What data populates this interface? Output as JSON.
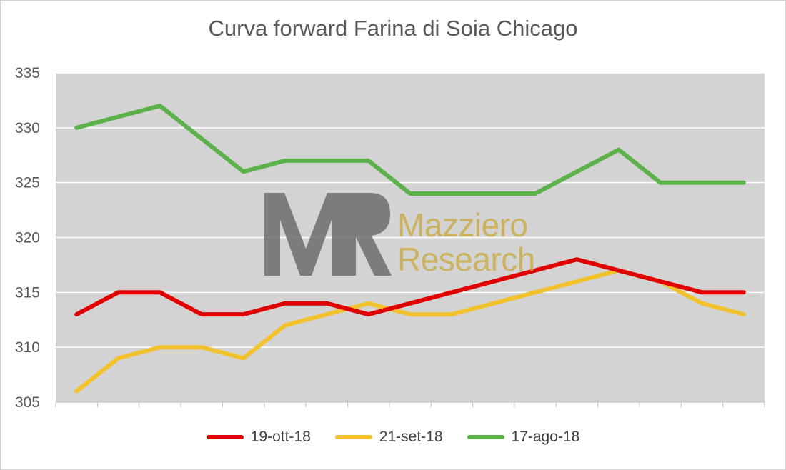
{
  "chart_data": {
    "type": "line",
    "title": "Curva forward Farina di Soia Chicago",
    "xlabel": "",
    "ylabel": "",
    "ylim": [
      305,
      335
    ],
    "yticks": [
      "305",
      "310",
      "315",
      "320",
      "325",
      "330",
      "335"
    ],
    "grid": true,
    "legend_position": "bottom",
    "x_count": 17,
    "series": [
      {
        "name": "19-ott-18",
        "color": "#e00000",
        "values": [
          313,
          315,
          315,
          313,
          313,
          314,
          314,
          313,
          314,
          315,
          316,
          317,
          318,
          317,
          316,
          315,
          315
        ]
      },
      {
        "name": "21-set-18",
        "color": "#f2c12e",
        "values": [
          306,
          309,
          310,
          310,
          309,
          312,
          313,
          314,
          313,
          313,
          314,
          315,
          316,
          317,
          316,
          314,
          313
        ]
      },
      {
        "name": "17-ago-18",
        "color": "#5cb14a",
        "values": [
          330,
          331,
          332,
          329,
          326,
          327,
          327,
          327,
          324,
          324,
          324,
          324,
          326,
          328,
          325,
          325,
          325
        ]
      }
    ]
  },
  "watermark": {
    "monogram": "MR",
    "line1": "Mazziero",
    "line2": "Research"
  }
}
